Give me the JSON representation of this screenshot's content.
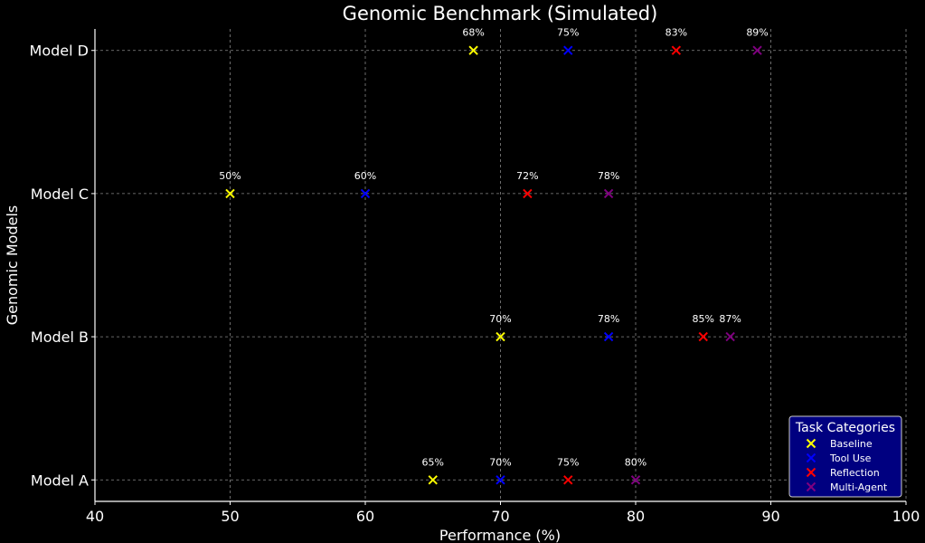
{
  "chart_data": {
    "type": "scatter",
    "title": "Genomic Benchmark (Simulated)",
    "xlabel": "Performance (%)",
    "ylabel": "Genomic Models",
    "xlim": [
      40,
      100
    ],
    "xticks": [
      40,
      50,
      60,
      70,
      80,
      90,
      100
    ],
    "categories": [
      "Model A",
      "Model B",
      "Model C",
      "Model D"
    ],
    "grid": true,
    "legend": {
      "title": "Task Categories",
      "position": "bottom-right"
    },
    "series": [
      {
        "name": "Baseline",
        "color": "#ffff00",
        "values": [
          65,
          70,
          50,
          68
        ]
      },
      {
        "name": "Tool Use",
        "color": "#0000ff",
        "values": [
          70,
          78,
          60,
          75
        ]
      },
      {
        "name": "Reflection",
        "color": "#ff0000",
        "values": [
          75,
          85,
          72,
          83
        ]
      },
      {
        "name": "Multi-Agent",
        "color": "#800080",
        "values": [
          80,
          87,
          78,
          89
        ]
      }
    ],
    "label_suffix": "%"
  },
  "colors": {
    "background": "#000000",
    "legend_bg": "#000080",
    "text": "#ffffff"
  }
}
